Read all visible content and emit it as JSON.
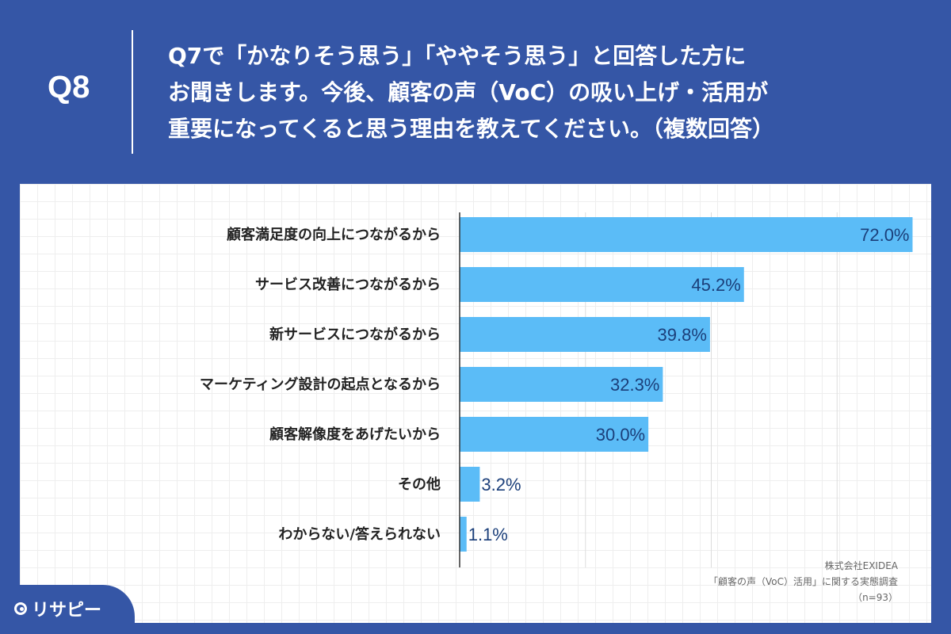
{
  "header": {
    "question_number": "Q8",
    "question_text": "Q7で「かなりそう思う」「ややそう思う」と回答した方に\nお聞きします。今後、顧客の声（VoC）の吸い上げ・活用が\n重要になってくると思う理由を教えてください。（複数回答）"
  },
  "colors": {
    "background": "#3556a6",
    "bar": "#5bbcf7",
    "value_text": "#1b3f7a",
    "category_text": "#222222"
  },
  "chart_data": {
    "type": "bar",
    "orientation": "horizontal",
    "categories": [
      "顧客満足度の向上につながるから",
      "サービス改善につながるから",
      "新サービスにつながるから",
      "マーケティング設計の起点となるから",
      "顧客解像度をあげたいから",
      "その他",
      "わからない/答えられない"
    ],
    "values": [
      72.0,
      45.2,
      39.8,
      32.3,
      30.0,
      3.2,
      1.1
    ],
    "value_labels": [
      "72.0%",
      "45.2%",
      "39.8%",
      "32.3%",
      "30.0%",
      "3.2%",
      "1.1%"
    ],
    "xlim": [
      0,
      80
    ],
    "grid": true
  },
  "source": {
    "company": "株式会社EXIDEA",
    "survey": "「顧客の声（VoC）活用」に関する実態調査",
    "n": "（n=93）"
  },
  "logo": {
    "text": "リサピー",
    "icon": "magnifier-icon"
  }
}
